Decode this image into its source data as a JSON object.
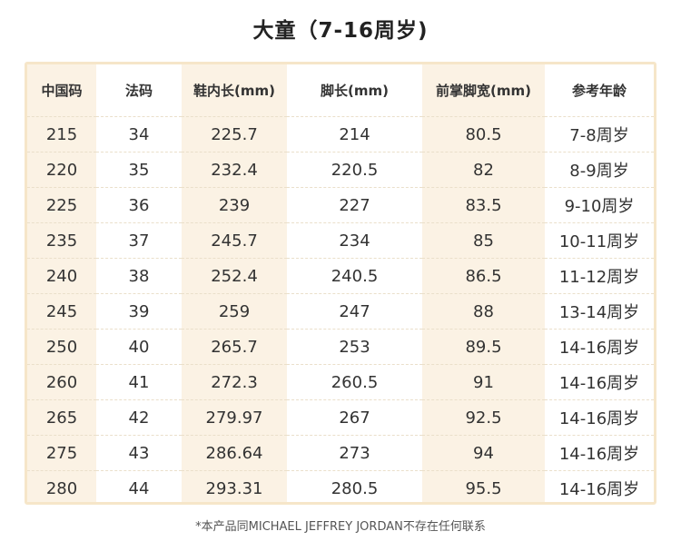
{
  "title": "大童（7-16周岁)",
  "table": {
    "headers": [
      "中国码",
      "法码",
      "鞋内长(mm)",
      "脚长(mm)",
      "前掌脚宽(mm)",
      "参考年龄"
    ],
    "rows": [
      [
        "215",
        "34",
        "225.7",
        "214",
        "80.5",
        "7-8周岁"
      ],
      [
        "220",
        "35",
        "232.4",
        "220.5",
        "82",
        "8-9周岁"
      ],
      [
        "225",
        "36",
        "239",
        "227",
        "83.5",
        "9-10周岁"
      ],
      [
        "235",
        "37",
        "245.7",
        "234",
        "85",
        "10-11周岁"
      ],
      [
        "240",
        "38",
        "252.4",
        "240.5",
        "86.5",
        "11-12周岁"
      ],
      [
        "245",
        "39",
        "259",
        "247",
        "88",
        "13-14周岁"
      ],
      [
        "250",
        "40",
        "265.7",
        "253",
        "89.5",
        "14-16周岁"
      ],
      [
        "260",
        "41",
        "272.3",
        "260.5",
        "91",
        "14-16周岁"
      ],
      [
        "265",
        "42",
        "279.97",
        "267",
        "92.5",
        "14-16周岁"
      ],
      [
        "275",
        "43",
        "286.64",
        "273",
        "94",
        "14-16周岁"
      ],
      [
        "280",
        "44",
        "293.31",
        "280.5",
        "95.5",
        "14-16周岁"
      ]
    ]
  },
  "footnote": "*本产品同MICHAEL JEFFREY JORDAN不存在任何联系",
  "colors": {
    "frame_border": "#f6e6c9",
    "shaded_column": "#fbf2e4"
  }
}
